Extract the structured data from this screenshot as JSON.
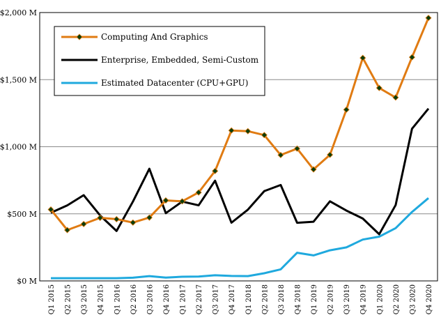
{
  "chart_data": {
    "type": "line",
    "title": "",
    "xlabel": "",
    "ylabel": "",
    "ylim": [
      0,
      2000
    ],
    "yticks": [
      0,
      500,
      1000,
      1500,
      2000
    ],
    "ytick_labels": [
      "$0 M",
      "$500 M",
      "$1,000 M",
      "$1,500 M",
      "$2,000 M"
    ],
    "grid": true,
    "legend_position": "top-left",
    "categories": [
      "Q1 2015",
      "Q2 2015",
      "Q3 2015",
      "Q4 2015",
      "Q1 2016",
      "Q2 2016",
      "Q3 2016",
      "Q4 2016",
      "Q1 2017",
      "Q2 2017",
      "Q3 2017",
      "Q4 2017",
      "Q1 2018",
      "Q2 2018",
      "Q3 2018",
      "Q4 2018",
      "Q1 2019",
      "Q2 2019",
      "Q3 2019",
      "Q4 2019",
      "Q1 2020",
      "Q2 2020",
      "Q3 2020",
      "Q4 2020"
    ],
    "series": [
      {
        "name": "Computing And Graphics",
        "color": "#E07B12",
        "marker": "diamond",
        "marker_color": "#0b3d0b",
        "values": [
          532,
          379,
          424,
          470,
          460,
          435,
          472,
          600,
          593,
          659,
          819,
          1121,
          1116,
          1087,
          938,
          986,
          831,
          940,
          1276,
          1662,
          1438,
          1367,
          1667,
          1960
        ]
      },
      {
        "name": "Enterprise, Embedded, Semi-Custom",
        "color": "#000000",
        "marker": "none",
        "values": [
          508,
          563,
          639,
          488,
          372,
          591,
          836,
          505,
          591,
          563,
          747,
          434,
          531,
          669,
          715,
          433,
          441,
          593,
          524,
          465,
          348,
          565,
          1134,
          1284
        ]
      },
      {
        "name": "Estimated Datacenter (CPU+GPU)",
        "color": "#1FA9DE",
        "marker": "none",
        "values": [
          20,
          20,
          20,
          20,
          20,
          24,
          36,
          25,
          31,
          32,
          42,
          37,
          36,
          57,
          86,
          210,
          190,
          228,
          250,
          308,
          330,
          393,
          514,
          617
        ]
      }
    ]
  }
}
